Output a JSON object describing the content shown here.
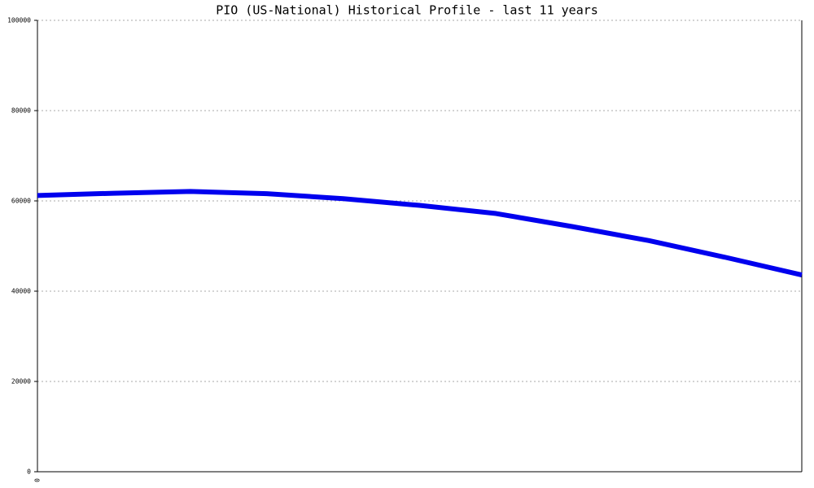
{
  "chart_data": {
    "type": "line",
    "title": "PIO (US-National) Historical Profile - last 11 years",
    "categories": [
      "0",
      null,
      null,
      null,
      null,
      null,
      null,
      null,
      null,
      null,
      null
    ],
    "series": [
      {
        "name": "PIO",
        "color": "#0000ee",
        "values": [
          61200,
          61700,
          62100,
          61600,
          60500,
          59000,
          57200,
          54300,
          51200,
          47500,
          43600
        ]
      }
    ],
    "ylim": [
      0,
      100000
    ],
    "yticks": [
      0,
      20000,
      40000,
      60000,
      80000,
      100000
    ],
    "grid": true
  }
}
